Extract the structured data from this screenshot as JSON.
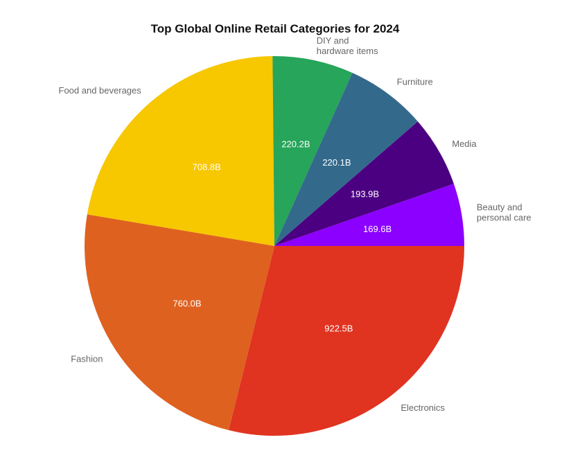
{
  "chart_data": {
    "type": "pie",
    "title": "Top Global Online Retail Categories for 2024",
    "categories": [
      "Electronics",
      "Fashion",
      "Food and beverages",
      "DIY and hardware items",
      "Furniture",
      "Media",
      "Beauty and personal care"
    ],
    "values": [
      922.5,
      760.0,
      708.8,
      220.2,
      220.1,
      193.9,
      169.6
    ],
    "value_labels": [
      "922.5B",
      "760.0B",
      "708.8B",
      "220.2B",
      "220.1B",
      "193.9B",
      "169.6B"
    ],
    "outer_labels": [
      [
        "Electronics"
      ],
      [
        "Fashion"
      ],
      [
        "Food and beverages"
      ],
      [
        "DIY and",
        "hardware items"
      ],
      [
        "Furniture"
      ],
      [
        "Media"
      ],
      [
        "Beauty and",
        "personal care"
      ]
    ],
    "colors": [
      "#e03421",
      "#df6120",
      "#f7c700",
      "#27a55a",
      "#336a8c",
      "#4b0082",
      "#8b00ff"
    ],
    "start": "3 o'clock",
    "direction": "clockwise",
    "legend": "none"
  }
}
